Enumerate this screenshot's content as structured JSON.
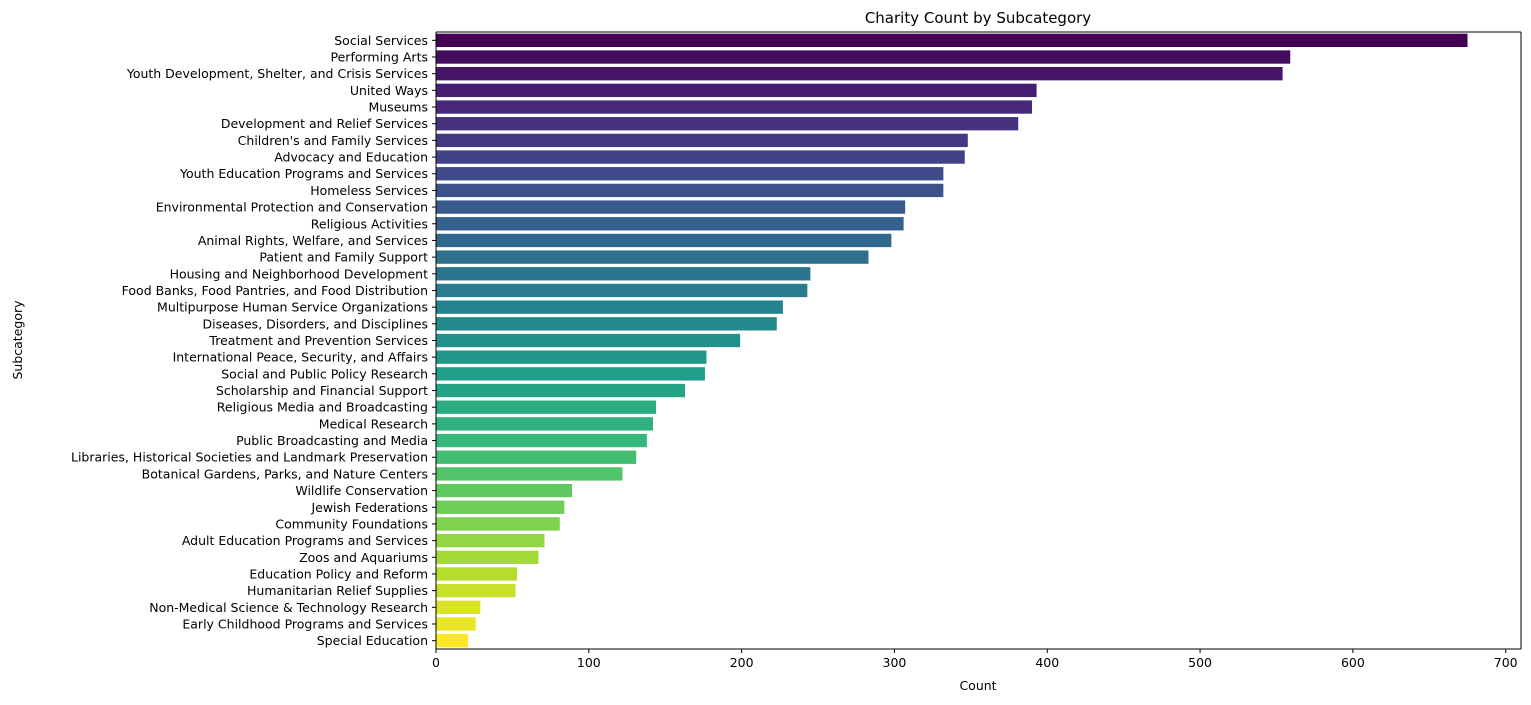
{
  "chart_data": {
    "type": "bar",
    "orientation": "horizontal",
    "title": "Charity Count by Subcategory",
    "xlabel": "Count",
    "ylabel": "Subcategory",
    "xlim": [
      0,
      710
    ],
    "xticks": [
      0,
      100,
      200,
      300,
      400,
      500,
      600,
      700
    ],
    "grid": false,
    "legend": "none",
    "palette": "viridis",
    "colors": [
      "#440154",
      "#fde725"
    ],
    "categories": [
      "Social Services",
      "Performing Arts",
      "Youth Development, Shelter, and Crisis Services",
      "United Ways",
      "Museums",
      "Development and Relief Services",
      "Children's and Family Services",
      "Advocacy and Education",
      "Youth Education Programs and Services",
      "Homeless Services",
      "Environmental Protection and Conservation",
      "Religious Activities",
      "Animal Rights, Welfare, and Services",
      "Patient and Family Support",
      "Housing and Neighborhood Development",
      "Food Banks, Food Pantries, and Food Distribution",
      "Multipurpose Human Service Organizations",
      "Diseases, Disorders, and Disciplines",
      "Treatment and Prevention Services",
      "International Peace, Security, and Affairs",
      "Social and Public Policy Research",
      "Scholarship and Financial Support",
      "Religious Media and Broadcasting",
      "Medical Research",
      "Public Broadcasting and Media",
      "Libraries, Historical Societies and Landmark Preservation",
      "Botanical Gardens, Parks, and Nature Centers",
      "Wildlife Conservation",
      "Jewish Federations",
      "Community Foundations",
      "Adult Education Programs and Services",
      "Zoos and Aquariums",
      "Education Policy and Reform",
      "Humanitarian Relief Supplies",
      "Non-Medical Science & Technology Research",
      "Early Childhood Programs and Services",
      "Special Education"
    ],
    "values": [
      675,
      559,
      554,
      393,
      390,
      381,
      348,
      346,
      332,
      332,
      307,
      306,
      298,
      283,
      245,
      243,
      227,
      223,
      199,
      177,
      176,
      163,
      144,
      142,
      138,
      131,
      122,
      89,
      84,
      81,
      71,
      67,
      53,
      52,
      29,
      26,
      21
    ]
  }
}
